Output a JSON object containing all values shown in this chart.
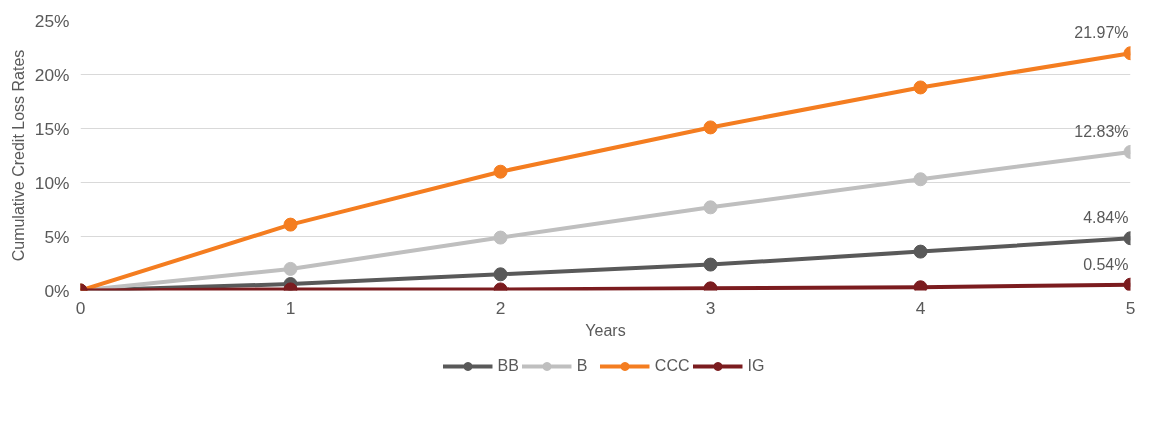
{
  "chart_data": {
    "type": "line",
    "xlabel": "Years",
    "ylabel": "Cumulative Credit Loss Rates",
    "x": [
      0,
      1,
      2,
      3,
      4,
      5
    ],
    "series": [
      {
        "name": "BB",
        "color": "#595959",
        "values": [
          0,
          0.6,
          1.5,
          2.4,
          3.6,
          4.84
        ],
        "value_labels": [
          null,
          null,
          null,
          null,
          null,
          "4.84%"
        ]
      },
      {
        "name": "B",
        "color": "#bfbfbf",
        "values": [
          0,
          2.0,
          4.9,
          7.7,
          10.3,
          12.83
        ],
        "value_labels": [
          null,
          null,
          null,
          null,
          null,
          "12.83%"
        ]
      },
      {
        "name": "CCC",
        "color": "#f47d20",
        "values": [
          0,
          6.1,
          11.0,
          15.1,
          18.8,
          21.97
        ],
        "value_labels": [
          null,
          null,
          null,
          null,
          null,
          "21.97%"
        ]
      },
      {
        "name": "IG",
        "color": "#7b1c1f",
        "values": [
          0,
          0.1,
          0.1,
          0.2,
          0.3,
          0.54
        ],
        "value_labels": [
          null,
          null,
          null,
          null,
          null,
          "0.54%"
        ]
      }
    ],
    "xlim": [
      0,
      5
    ],
    "xticks": [
      0,
      1,
      2,
      3,
      4,
      5
    ],
    "ylim": [
      0,
      25
    ],
    "yticks": [
      {
        "value": 0,
        "label": "0%"
      },
      {
        "value": 5,
        "label": "5%"
      },
      {
        "value": 10,
        "label": "10%"
      },
      {
        "value": 15,
        "label": "15%"
      },
      {
        "value": 20,
        "label": "20%"
      },
      {
        "value": 25,
        "label": "25%"
      }
    ],
    "grid": "y",
    "legend": "bottom",
    "marker": "circle",
    "line_style": "solid"
  }
}
